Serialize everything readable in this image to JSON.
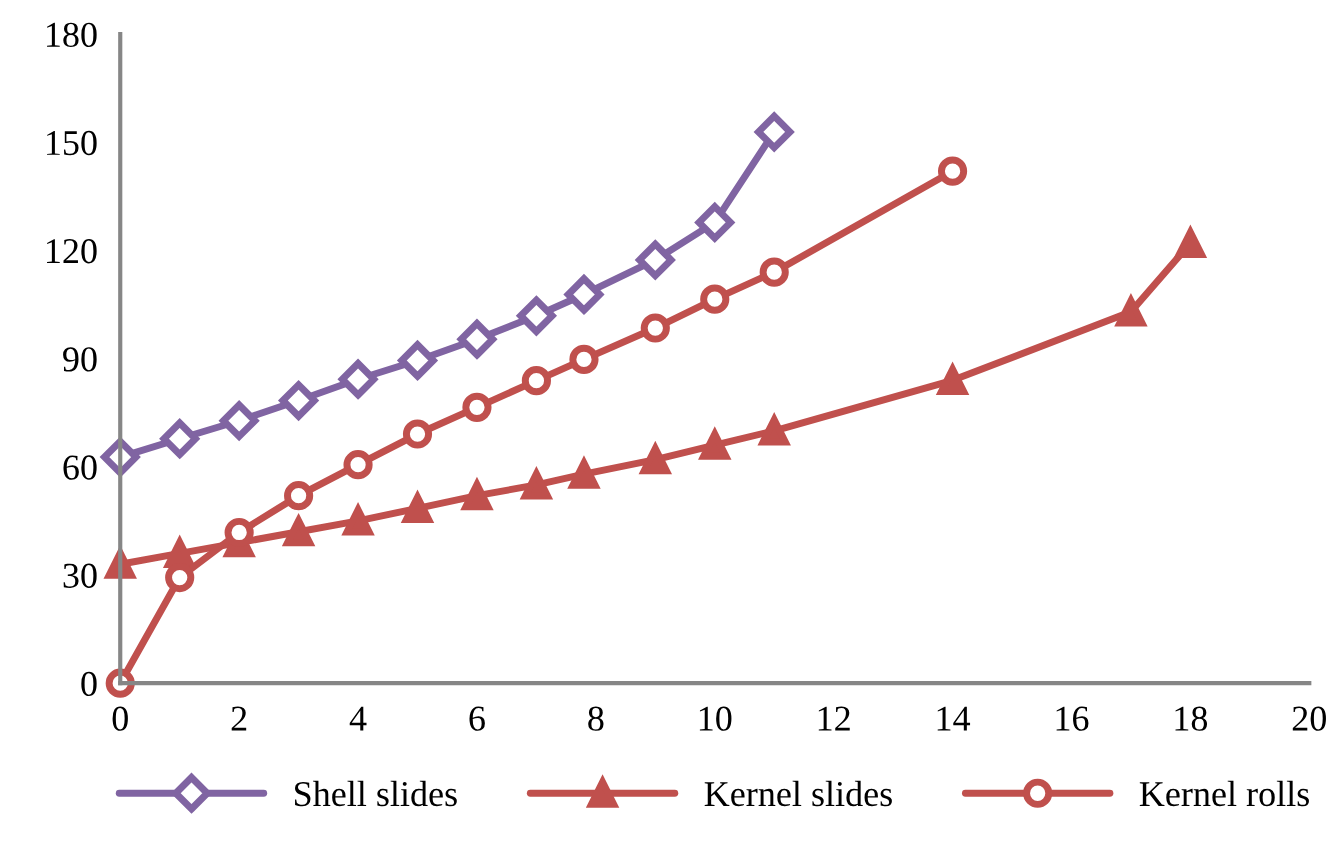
{
  "chart_data": {
    "type": "line",
    "xlim": [
      0,
      20
    ],
    "xticks": [
      0,
      2,
      4,
      6,
      8,
      10,
      12,
      14,
      16,
      18,
      20
    ],
    "ylim": [
      0,
      180
    ],
    "yticks": [
      0,
      30,
      60,
      90,
      120,
      150,
      180
    ],
    "grid": false,
    "legend": "bottom",
    "series": [
      {
        "name": "Shell slides",
        "color": "#8064a2",
        "marker": "diamond",
        "x": [
          0,
          1,
          2,
          3,
          4,
          5,
          6,
          7,
          7.8,
          9,
          10,
          11
        ],
        "values": [
          62.7,
          67.8,
          72.8,
          78.4,
          84.3,
          89.5,
          95.4,
          101.9,
          107.8,
          117.4,
          127.8,
          152.9
        ]
      },
      {
        "name": "Kernel slides",
        "color": "#c0504d",
        "marker": "triangle",
        "x": [
          0,
          1,
          2,
          3,
          4,
          5,
          6,
          7,
          7.8,
          9,
          10,
          11,
          14,
          17,
          18
        ],
        "values": [
          33,
          36,
          39,
          42,
          45,
          48.5,
          52,
          55,
          58,
          62,
          66,
          70,
          84,
          103,
          122
        ]
      },
      {
        "name": "Kernel rolls",
        "color": "#c0504d",
        "marker": "circle",
        "x": [
          0,
          1,
          2,
          3,
          4,
          5,
          6,
          7,
          7.8,
          9,
          10,
          11,
          14
        ],
        "values": [
          0,
          29.3,
          41.8,
          52,
          60.6,
          69.1,
          76.5,
          83.9,
          89.8,
          98.5,
          106.5,
          114,
          142
        ]
      }
    ]
  }
}
